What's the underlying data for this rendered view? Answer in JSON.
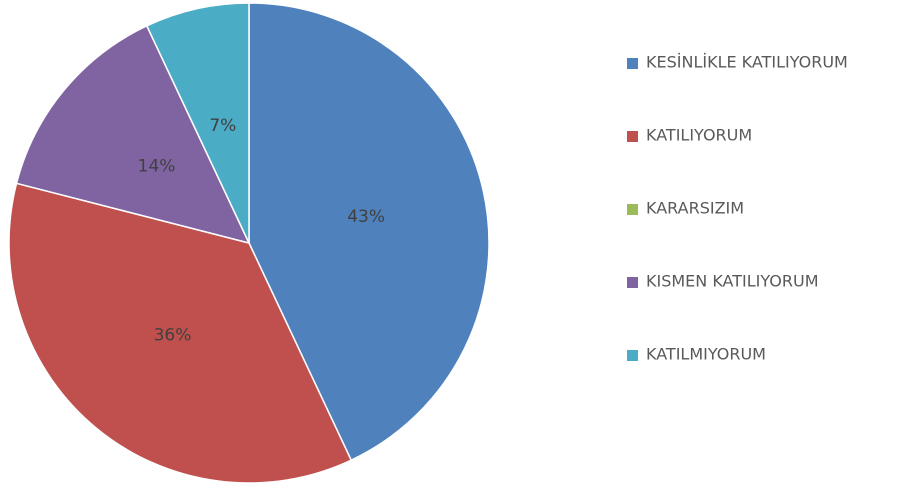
{
  "chart_data": {
    "type": "pie",
    "categories": [
      "KESİNLİKLE KATILIYORUM",
      "KATILIYORUM",
      "KARARSIZIM",
      "KISMEN KATILIYORUM",
      "KATILMIYORUM"
    ],
    "values": [
      43,
      36,
      0,
      14,
      7
    ],
    "value_labels": [
      "43%",
      "36%",
      null,
      "14%",
      "7%"
    ],
    "colors": [
      "#4f81bd",
      "#c0504d",
      "#9bbb59",
      "#8064a2",
      "#4bacc6"
    ],
    "legend": "right"
  }
}
